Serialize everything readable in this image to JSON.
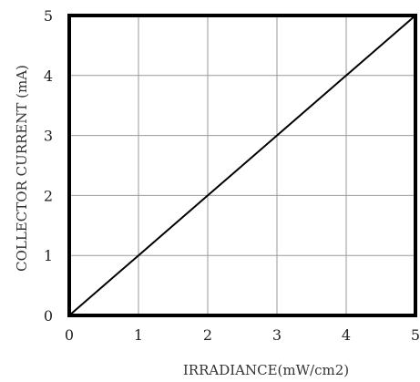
{
  "chart_data": {
    "type": "line",
    "title": "",
    "xlabel": "IRRADIANCE(mW/cm2)",
    "ylabel": "COLLECTOR CURRENT (mA)",
    "xlim": [
      0,
      5
    ],
    "ylim": [
      0,
      5
    ],
    "xticks": [
      "0",
      "1",
      "2",
      "3",
      "4",
      "5"
    ],
    "yticks": [
      "0",
      "1",
      "2",
      "3",
      "4",
      "5"
    ],
    "grid": true,
    "series": [
      {
        "x": [
          0,
          1,
          2,
          3,
          4,
          5
        ],
        "y": [
          0,
          1,
          2,
          3,
          4,
          5
        ],
        "color": "#000000"
      }
    ]
  }
}
